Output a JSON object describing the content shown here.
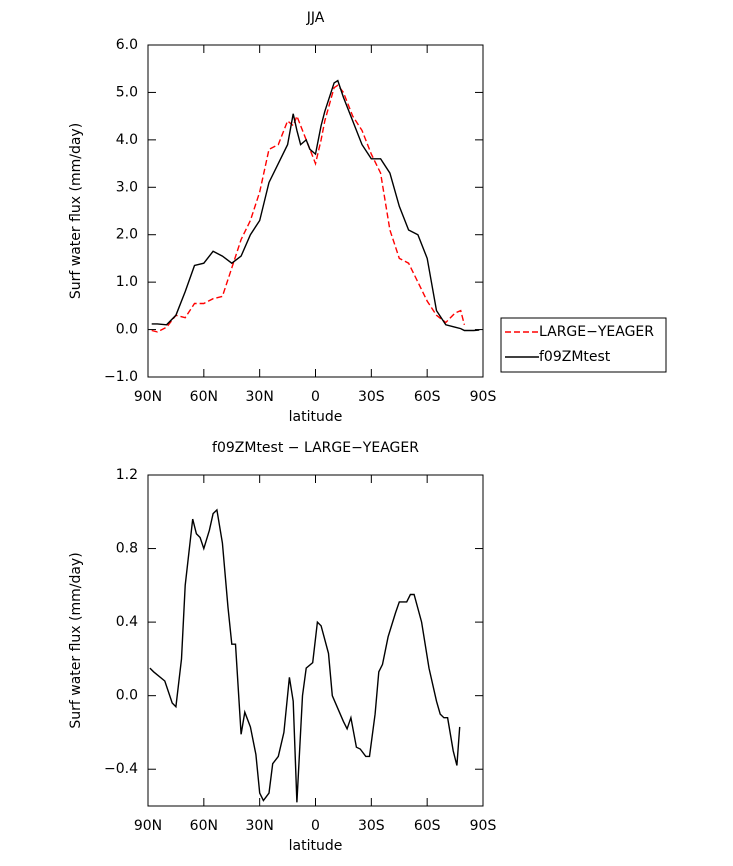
{
  "chart_data": [
    {
      "type": "line",
      "title": "JJA",
      "x_label": "latitude",
      "y_label": "Surf water flux (mm/day)",
      "xlim": [
        90,
        -90
      ],
      "xticks": [
        {
          "value": 90,
          "label": "90N"
        },
        {
          "value": 60,
          "label": "60N"
        },
        {
          "value": 30,
          "label": "30N"
        },
        0,
        {
          "value": -30,
          "label": "30S"
        },
        {
          "value": -60,
          "label": "60S"
        },
        {
          "value": -90,
          "label": "90S"
        }
      ],
      "ylim": [
        -1,
        6
      ],
      "yticks": [
        {
          "value": -1,
          "label": "−1.0"
        },
        {
          "value": 0,
          "label": "0.0"
        },
        {
          "value": 1,
          "label": "1.0"
        },
        {
          "value": 2,
          "label": "2.0"
        },
        {
          "value": 3,
          "label": "3.0"
        },
        {
          "value": 4,
          "label": "4.0"
        },
        {
          "value": 5,
          "label": "5.0"
        },
        {
          "value": 6,
          "label": "6.0"
        }
      ],
      "legend": "right",
      "x": [
        88,
        85,
        80,
        75,
        70,
        65,
        60,
        55,
        50,
        45,
        40,
        35,
        30,
        25,
        20,
        15,
        12,
        10,
        8,
        5,
        3,
        0,
        -3,
        -5,
        -10,
        -12,
        -15,
        -20,
        -25,
        -30,
        -35,
        -40,
        -45,
        -50,
        -55,
        -60,
        -65,
        -70,
        -75,
        -78,
        -80,
        -85,
        -88
      ],
      "series": [
        {
          "name": "LARGE−YEAGER",
          "color": "#ff0000",
          "dashed": true,
          "values": [
            -0.02,
            -0.05,
            0.05,
            0.3,
            0.25,
            0.55,
            0.55,
            0.65,
            0.7,
            1.3,
            1.9,
            2.3,
            2.9,
            3.8,
            3.9,
            4.4,
            4.3,
            4.5,
            4.3,
            4.0,
            3.8,
            3.5,
            4.0,
            4.4,
            5.1,
            5.15,
            5.0,
            4.5,
            4.2,
            3.7,
            3.3,
            2.1,
            1.5,
            1.4,
            1.0,
            0.6,
            0.3,
            0.15,
            0.35,
            0.4,
            0.1,
            null,
            null
          ]
        },
        {
          "name": "f09ZMtest",
          "color": "#000000",
          "dashed": false,
          "values": [
            0.12,
            0.12,
            0.1,
            0.3,
            0.8,
            1.35,
            1.4,
            1.65,
            1.55,
            1.4,
            1.55,
            2.0,
            2.3,
            3.1,
            3.5,
            3.9,
            4.55,
            4.2,
            3.9,
            4.0,
            3.8,
            3.7,
            4.3,
            4.6,
            5.2,
            5.25,
            4.9,
            4.4,
            3.9,
            3.6,
            3.6,
            3.3,
            2.6,
            2.1,
            2.0,
            1.5,
            0.4,
            0.1,
            0.05,
            0.02,
            -0.02,
            -0.02,
            -0.01
          ]
        }
      ]
    },
    {
      "type": "line",
      "title": "f09ZMtest − LARGE−YEAGER",
      "x_label": "latitude",
      "y_label": "Surf water flux (mm/day)",
      "xlim": [
        90,
        -90
      ],
      "xticks": [
        {
          "value": 90,
          "label": "90N"
        },
        {
          "value": 60,
          "label": "60N"
        },
        {
          "value": 30,
          "label": "30N"
        },
        0,
        {
          "value": -30,
          "label": "30S"
        },
        {
          "value": -60,
          "label": "60S"
        },
        {
          "value": -90,
          "label": "90S"
        }
      ],
      "ylim": [
        -0.6,
        1.2
      ],
      "yticks": [
        {
          "value": -0.4,
          "label": "−0.4"
        },
        {
          "value": 0,
          "label": "0.0"
        },
        0.4,
        0.8,
        1.2
      ],
      "x": [
        89,
        87,
        81,
        77,
        75,
        72,
        70,
        66,
        64,
        62,
        60,
        57,
        55,
        53,
        50,
        47,
        45,
        43,
        40,
        38,
        35,
        32,
        30,
        28,
        25,
        23,
        20,
        17,
        14,
        12,
        10,
        7,
        5,
        1.5,
        -1,
        -3,
        -7,
        -9,
        -15,
        -17,
        -19,
        -22,
        -24,
        -27,
        -29,
        -32,
        -34,
        -36,
        -39,
        -43,
        -45,
        -49,
        -51,
        -53,
        -57,
        -61,
        -65,
        -67,
        -69,
        -71,
        -74,
        -76,
        -77.5
      ],
      "series": [
        {
          "name": "f09ZMtest − LARGE−YEAGER",
          "color": "#000000",
          "dashed": false,
          "values": [
            0.15,
            0.13,
            0.08,
            -0.04,
            -0.06,
            0.2,
            0.6,
            0.96,
            0.88,
            0.86,
            0.8,
            0.9,
            0.99,
            1.01,
            0.83,
            0.48,
            0.28,
            0.28,
            -0.21,
            -0.09,
            -0.17,
            -0.32,
            -0.53,
            -0.57,
            -0.53,
            -0.37,
            -0.33,
            -0.2,
            0.1,
            -0.03,
            -0.58,
            0.0,
            0.15,
            0.18,
            0.4,
            0.38,
            0.23,
            0.0,
            -0.14,
            -0.18,
            -0.12,
            -0.28,
            -0.29,
            -0.33,
            -0.33,
            -0.1,
            0.13,
            0.17,
            0.32,
            0.45,
            0.51,
            0.51,
            0.55,
            0.55,
            0.4,
            0.15,
            -0.03,
            -0.1,
            -0.12,
            -0.12,
            -0.3,
            -0.38,
            -0.17
          ]
        }
      ]
    }
  ]
}
